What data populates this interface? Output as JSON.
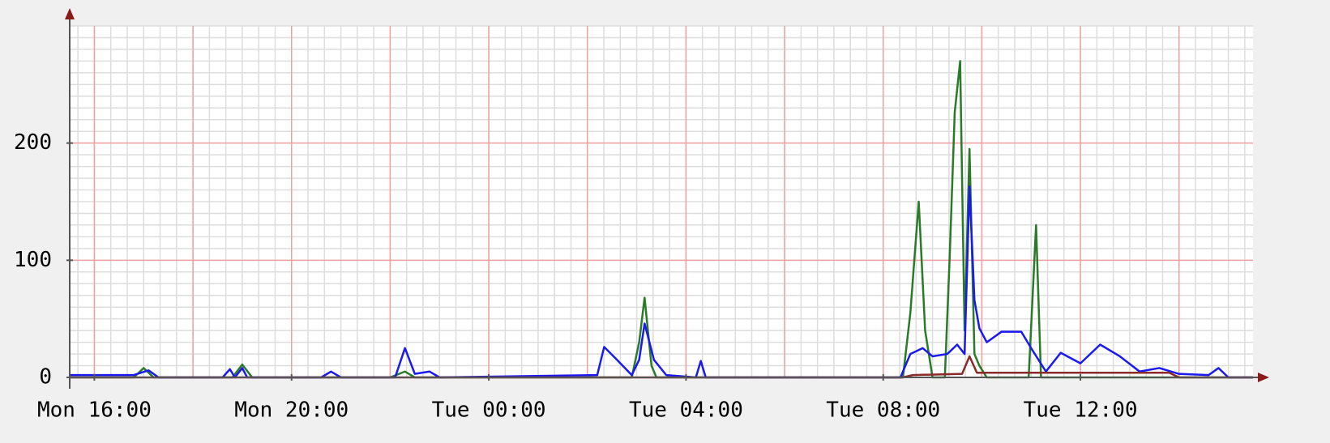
{
  "chart_data": {
    "type": "line",
    "xlim": [
      15.5,
      39.5
    ],
    "ylim": [
      0,
      300
    ],
    "xticks": [
      {
        "value": 16,
        "label": "Mon 16:00"
      },
      {
        "value": 20,
        "label": "Mon 20:00"
      },
      {
        "value": 24,
        "label": "Tue 00:00"
      },
      {
        "value": 28,
        "label": "Tue 04:00"
      },
      {
        "value": 32,
        "label": "Tue 08:00"
      },
      {
        "value": 36,
        "label": "Tue 12:00"
      }
    ],
    "yticks": [
      0,
      100,
      200
    ],
    "xgrid": [
      16,
      18,
      20,
      22,
      24,
      26,
      28,
      30,
      32,
      34,
      36,
      38
    ],
    "ygrid": [
      100,
      200
    ],
    "xminor_per_major": 6,
    "yminor_per_major": 10,
    "major_grid_color": "#f0a0a0",
    "minor_grid_color": "#dddddd",
    "series": [
      {
        "color": "#2a7a2a",
        "x": [
          15.5,
          16.8,
          17.0,
          17.2,
          18.8,
          19.0,
          19.2,
          22.0,
          22.3,
          22.5,
          26.9,
          27.05,
          27.16,
          27.3,
          27.4,
          32.4,
          32.55,
          32.72,
          32.85,
          33.0,
          33.25,
          33.35,
          33.45,
          33.56,
          33.65,
          33.75,
          33.85,
          33.95,
          34.1,
          34.95,
          35.1,
          35.2,
          39.5
        ],
        "values": [
          0,
          0,
          8,
          0,
          0,
          11,
          0,
          0,
          5,
          0,
          0,
          30,
          68,
          10,
          0,
          0,
          55,
          150,
          40,
          0,
          0,
          105,
          226,
          270,
          40,
          195,
          20,
          10,
          0,
          0,
          130,
          0,
          0
        ]
      },
      {
        "color": "#1a1aee",
        "x": [
          15.5,
          16.0,
          16.8,
          17.1,
          17.3,
          18.6,
          18.75,
          18.85,
          19.0,
          19.1,
          20.6,
          20.8,
          21.0,
          22.1,
          22.3,
          22.5,
          22.8,
          23.0,
          26.2,
          26.34,
          26.6,
          26.9,
          27.05,
          27.16,
          27.35,
          27.6,
          28.2,
          28.3,
          28.4,
          32.35,
          32.55,
          32.8,
          33.0,
          33.3,
          33.5,
          33.65,
          33.75,
          33.85,
          33.95,
          34.1,
          34.4,
          34.8,
          35.0,
          35.3,
          35.6,
          36.0,
          36.4,
          36.8,
          37.2,
          37.6,
          38.0,
          38.6,
          38.8,
          39.0,
          39.5
        ],
        "values": [
          2,
          2,
          2,
          6,
          0,
          0,
          7,
          0,
          8,
          0,
          0,
          5,
          0,
          0,
          25,
          3,
          5,
          0,
          2,
          26,
          15,
          2,
          15,
          46,
          15,
          2,
          0,
          14,
          0,
          0,
          20,
          25,
          18,
          20,
          28,
          20,
          163,
          66,
          42,
          30,
          39,
          39,
          25,
          5,
          21,
          12,
          28,
          18,
          5,
          8,
          3,
          2,
          8,
          0,
          0
        ]
      },
      {
        "color": "#8b2a2a",
        "x": [
          15.5,
          32.4,
          32.6,
          33.6,
          33.75,
          33.9,
          34.4,
          36.5,
          37.8,
          38.0,
          39.5
        ],
        "values": [
          0,
          0,
          2,
          3,
          18,
          4,
          4,
          4,
          4,
          0,
          0
        ]
      }
    ]
  }
}
